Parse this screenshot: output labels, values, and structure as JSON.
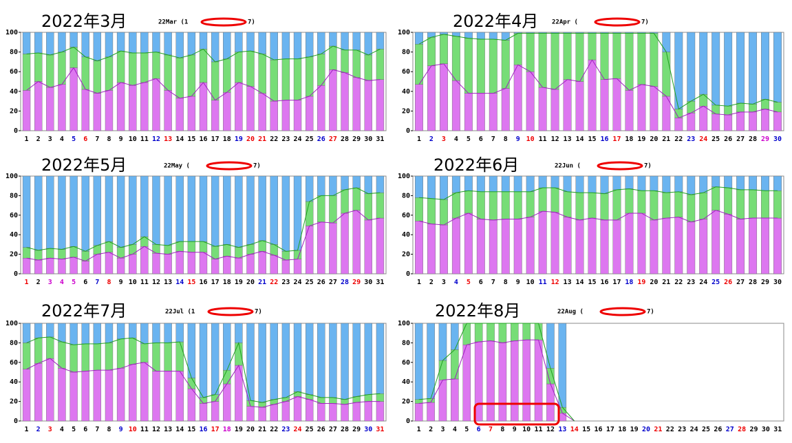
{
  "chart_data": [
    {
      "type": "stacked_bar",
      "title": "2022年3月",
      "subtitle": [
        "22Mar (1",
        "7)"
      ],
      "categories": [
        "1",
        "2",
        "3",
        "4",
        "5",
        "6",
        "7",
        "8",
        "9",
        "10",
        "11",
        "12",
        "13",
        "14",
        "15",
        "16",
        "17",
        "18",
        "19",
        "20",
        "21",
        "22",
        "23",
        "24",
        "25",
        "26",
        "27",
        "28",
        "29",
        "30",
        "31"
      ],
      "category_colors": [
        "#000",
        "#000",
        "#000",
        "#000",
        "#00c",
        "#e00",
        "#000",
        "#000",
        "#000",
        "#000",
        "#000",
        "#00c",
        "#e00",
        "#000",
        "#000",
        "#000",
        "#000",
        "#000",
        "#00c",
        "#e00",
        "#e00",
        "#000",
        "#000",
        "#000",
        "#000",
        "#00c",
        "#e00",
        "#000",
        "#000",
        "#000",
        "#000"
      ],
      "series": [
        {
          "color": "#dd77f0",
          "line_color": "#a020c0",
          "values": [
            41,
            50,
            44,
            47,
            64,
            42,
            38,
            41,
            49,
            46,
            49,
            53,
            41,
            33,
            35,
            49,
            31,
            39,
            49,
            45,
            38,
            30,
            31,
            31,
            35,
            46,
            62,
            59,
            54,
            51,
            52
          ]
        },
        {
          "color": "#77dd77",
          "line_color": "#20a020",
          "values": [
            37,
            29,
            33,
            33,
            21,
            33,
            33,
            34,
            32,
            33,
            30,
            27,
            36,
            41,
            42,
            34,
            39,
            34,
            31,
            36,
            40,
            42,
            42,
            42,
            40,
            32,
            24,
            23,
            28,
            26,
            31
          ]
        },
        {
          "color": "#6ab4f0",
          "values": [
            22,
            21,
            23,
            20,
            15,
            25,
            29,
            25,
            19,
            21,
            21,
            20,
            23,
            26,
            23,
            17,
            30,
            27,
            20,
            19,
            22,
            28,
            27,
            27,
            25,
            22,
            14,
            18,
            18,
            23,
            17
          ]
        }
      ],
      "ylim": [
        0,
        100
      ],
      "yticks": [
        0,
        20,
        40,
        60,
        80,
        100
      ]
    },
    {
      "type": "stacked_bar",
      "title": "2022年4月",
      "subtitle": [
        "22Apr (",
        "7)"
      ],
      "categories": [
        "1",
        "2",
        "3",
        "4",
        "5",
        "6",
        "7",
        "8",
        "9",
        "10",
        "11",
        "12",
        "13",
        "14",
        "15",
        "16",
        "17",
        "18",
        "19",
        "20",
        "21",
        "22",
        "23",
        "24",
        "25",
        "26",
        "27",
        "28",
        "29",
        "30"
      ],
      "category_colors": [
        "#000",
        "#00c",
        "#e00",
        "#000",
        "#000",
        "#000",
        "#000",
        "#000",
        "#00c",
        "#e00",
        "#000",
        "#000",
        "#000",
        "#000",
        "#000",
        "#00c",
        "#e00",
        "#000",
        "#000",
        "#000",
        "#000",
        "#000",
        "#00c",
        "#e00",
        "#000",
        "#000",
        "#000",
        "#000",
        "#c0c",
        "#00c"
      ],
      "series": [
        {
          "color": "#dd77f0",
          "line_color": "#a020c0",
          "values": [
            47,
            66,
            68,
            51,
            38,
            38,
            38,
            43,
            67,
            60,
            44,
            42,
            52,
            50,
            72,
            52,
            53,
            41,
            47,
            45,
            35,
            13,
            18,
            25,
            17,
            16,
            19,
            19,
            22,
            19
          ]
        },
        {
          "color": "#77dd77",
          "line_color": "#20a020",
          "values": [
            41,
            29,
            30,
            45,
            56,
            55,
            55,
            49,
            32,
            39,
            55,
            57,
            47,
            49,
            27,
            47,
            46,
            58,
            52,
            54,
            45,
            9,
            12,
            12,
            9,
            9,
            9,
            8,
            10,
            10
          ]
        },
        {
          "color": "#6ab4f0",
          "values": [
            12,
            5,
            2,
            4,
            6,
            7,
            7,
            8,
            1,
            1,
            1,
            1,
            1,
            1,
            1,
            1,
            1,
            1,
            1,
            1,
            20,
            78,
            70,
            63,
            74,
            75,
            72,
            73,
            68,
            71
          ]
        }
      ],
      "ylim": [
        0,
        100
      ],
      "yticks": [
        0,
        20,
        40,
        60,
        80,
        100
      ]
    },
    {
      "type": "stacked_bar",
      "title": "2022年5月",
      "subtitle": [
        "22May (",
        "7)"
      ],
      "categories": [
        "1",
        "2",
        "3",
        "4",
        "5",
        "6",
        "7",
        "8",
        "9",
        "10",
        "11",
        "12",
        "13",
        "14",
        "15",
        "16",
        "17",
        "18",
        "19",
        "20",
        "21",
        "22",
        "23",
        "24",
        "25",
        "26",
        "27",
        "28",
        "29",
        "30",
        "31"
      ],
      "category_colors": [
        "#e00",
        "#000",
        "#c0c",
        "#c0c",
        "#c0c",
        "#000",
        "#00c",
        "#e00",
        "#000",
        "#000",
        "#000",
        "#000",
        "#000",
        "#00c",
        "#e00",
        "#000",
        "#000",
        "#000",
        "#000",
        "#000",
        "#00c",
        "#e00",
        "#000",
        "#000",
        "#000",
        "#000",
        "#000",
        "#00c",
        "#e00",
        "#000",
        "#000"
      ],
      "series": [
        {
          "color": "#dd77f0",
          "line_color": "#a020c0",
          "values": [
            16,
            14,
            16,
            15,
            17,
            13,
            20,
            22,
            16,
            20,
            28,
            21,
            20,
            23,
            22,
            22,
            15,
            18,
            16,
            20,
            23,
            19,
            14,
            15,
            49,
            53,
            52,
            62,
            65,
            55,
            57
          ]
        },
        {
          "color": "#77dd77",
          "line_color": "#20a020",
          "values": [
            11,
            10,
            10,
            10,
            11,
            10,
            9,
            11,
            11,
            10,
            10,
            9,
            9,
            10,
            11,
            11,
            13,
            12,
            11,
            10,
            11,
            11,
            9,
            9,
            25,
            27,
            28,
            24,
            23,
            27,
            26
          ]
        },
        {
          "color": "#6ab4f0",
          "values": [
            73,
            76,
            74,
            75,
            72,
            77,
            71,
            67,
            73,
            70,
            62,
            70,
            71,
            67,
            67,
            67,
            72,
            70,
            73,
            70,
            66,
            70,
            77,
            76,
            26,
            20,
            20,
            14,
            12,
            18,
            17
          ]
        }
      ],
      "ylim": [
        0,
        100
      ],
      "yticks": [
        0,
        20,
        40,
        60,
        80,
        100
      ]
    },
    {
      "type": "stacked_bar",
      "title": "2022年6月",
      "subtitle": [
        "22Jun (",
        "7)"
      ],
      "categories": [
        "1",
        "2",
        "3",
        "4",
        "5",
        "6",
        "7",
        "8",
        "9",
        "10",
        "11",
        "12",
        "13",
        "14",
        "15",
        "16",
        "17",
        "18",
        "19",
        "20",
        "21",
        "22",
        "23",
        "24",
        "25",
        "26",
        "27",
        "28",
        "29",
        "30"
      ],
      "category_colors": [
        "#000",
        "#000",
        "#000",
        "#00c",
        "#e00",
        "#000",
        "#000",
        "#000",
        "#000",
        "#000",
        "#00c",
        "#e00",
        "#000",
        "#000",
        "#000",
        "#000",
        "#000",
        "#00c",
        "#e00",
        "#000",
        "#000",
        "#000",
        "#000",
        "#000",
        "#00c",
        "#e00",
        "#000",
        "#000",
        "#000",
        "#000"
      ],
      "series": [
        {
          "color": "#dd77f0",
          "line_color": "#a020c0",
          "values": [
            54,
            51,
            50,
            57,
            62,
            56,
            55,
            56,
            56,
            58,
            64,
            63,
            58,
            55,
            57,
            55,
            55,
            62,
            62,
            55,
            57,
            58,
            53,
            56,
            65,
            61,
            56,
            57,
            57,
            57
          ]
        },
        {
          "color": "#77dd77",
          "line_color": "#20a020",
          "values": [
            24,
            26,
            26,
            26,
            23,
            28,
            29,
            28,
            28,
            26,
            24,
            25,
            26,
            28,
            26,
            27,
            31,
            25,
            23,
            30,
            26,
            26,
            28,
            27,
            24,
            27,
            30,
            29,
            28,
            28
          ]
        },
        {
          "color": "#6ab4f0",
          "values": [
            22,
            23,
            24,
            17,
            15,
            16,
            16,
            16,
            16,
            16,
            12,
            12,
            16,
            17,
            17,
            18,
            14,
            13,
            15,
            15,
            17,
            16,
            19,
            17,
            11,
            12,
            14,
            14,
            15,
            15
          ]
        }
      ],
      "ylim": [
        0,
        100
      ],
      "yticks": [
        0,
        20,
        40,
        60,
        80,
        100
      ]
    },
    {
      "type": "stacked_bar",
      "title": "2022年7月",
      "subtitle": [
        "22Jul (1",
        "7)"
      ],
      "categories": [
        "1",
        "2",
        "3",
        "4",
        "5",
        "6",
        "7",
        "8",
        "9",
        "10",
        "11",
        "12",
        "13",
        "14",
        "15",
        "16",
        "17",
        "18",
        "19",
        "20",
        "21",
        "22",
        "23",
        "24",
        "25",
        "26",
        "27",
        "28",
        "29",
        "30",
        "31"
      ],
      "category_colors": [
        "#000",
        "#00c",
        "#e00",
        "#000",
        "#000",
        "#000",
        "#000",
        "#000",
        "#00c",
        "#e00",
        "#000",
        "#000",
        "#000",
        "#000",
        "#000",
        "#00c",
        "#e00",
        "#c0c",
        "#000",
        "#000",
        "#000",
        "#000",
        "#00c",
        "#e00",
        "#000",
        "#000",
        "#000",
        "#000",
        "#000",
        "#00c",
        "#e00"
      ],
      "series": [
        {
          "color": "#dd77f0",
          "line_color": "#a020c0",
          "values": [
            53,
            59,
            64,
            54,
            50,
            51,
            52,
            52,
            54,
            58,
            60,
            51,
            51,
            51,
            33,
            18,
            20,
            38,
            57,
            15,
            14,
            17,
            20,
            25,
            22,
            18,
            18,
            17,
            19,
            20,
            20
          ]
        },
        {
          "color": "#77dd77",
          "line_color": "#20a020",
          "values": [
            27,
            26,
            22,
            27,
            28,
            28,
            27,
            28,
            30,
            27,
            19,
            29,
            29,
            30,
            11,
            6,
            7,
            14,
            23,
            6,
            5,
            5,
            4,
            5,
            5,
            6,
            6,
            5,
            6,
            7,
            8
          ]
        },
        {
          "color": "#6ab4f0",
          "values": [
            20,
            15,
            14,
            19,
            22,
            21,
            21,
            20,
            16,
            15,
            21,
            20,
            20,
            19,
            56,
            76,
            73,
            48,
            20,
            79,
            81,
            78,
            76,
            70,
            73,
            76,
            76,
            78,
            75,
            73,
            72
          ]
        }
      ],
      "ylim": [
        0,
        100
      ],
      "yticks": [
        0,
        20,
        40,
        60,
        80,
        100
      ]
    },
    {
      "type": "stacked_bar",
      "title": "2022年8月",
      "subtitle": [
        "22Aug (",
        "7)"
      ],
      "categories": [
        "1",
        "2",
        "3",
        "4",
        "5",
        "6",
        "7",
        "8",
        "9",
        "10",
        "11",
        "12",
        "13",
        "14",
        "15",
        "16",
        "17",
        "18",
        "19",
        "20",
        "21",
        "22",
        "23",
        "24",
        "25",
        "26",
        "27",
        "28",
        "29",
        "30",
        "31"
      ],
      "category_colors": [
        "#000",
        "#000",
        "#000",
        "#000",
        "#000",
        "#00c",
        "#e00",
        "#000",
        "#000",
        "#000",
        "#000",
        "#000",
        "#00c",
        "#e00",
        "#000",
        "#000",
        "#000",
        "#000",
        "#000",
        "#00c",
        "#e00",
        "#000",
        "#000",
        "#000",
        "#000",
        "#000",
        "#00c",
        "#e00",
        "#000",
        "#000",
        "#000"
      ],
      "series": [
        {
          "color": "#dd77f0",
          "line_color": "#a020c0",
          "values": [
            18,
            19,
            42,
            43,
            78,
            81,
            82,
            80,
            82,
            83,
            83,
            38,
            8,
            0,
            null,
            null,
            null,
            null,
            null,
            null,
            null,
            null,
            null,
            null,
            null,
            null,
            null,
            null,
            null,
            null,
            null
          ]
        },
        {
          "color": "#77dd77",
          "line_color": "#20a020",
          "values": [
            4,
            4,
            20,
            30,
            22,
            19,
            18,
            20,
            18,
            17,
            17,
            16,
            6,
            0,
            null,
            null,
            null,
            null,
            null,
            null,
            null,
            null,
            null,
            null,
            null,
            null,
            null,
            null,
            null,
            null,
            null
          ]
        },
        {
          "color": "#6ab4f0",
          "values": [
            78,
            77,
            38,
            27,
            0,
            0,
            0,
            0,
            0,
            0,
            0,
            46,
            86,
            0,
            null,
            null,
            null,
            null,
            null,
            null,
            null,
            null,
            null,
            null,
            null,
            null,
            null,
            null,
            null,
            null,
            null
          ]
        }
      ],
      "ylim": [
        0,
        100
      ],
      "yticks": [
        0,
        20,
        40,
        60,
        80,
        100
      ]
    }
  ]
}
